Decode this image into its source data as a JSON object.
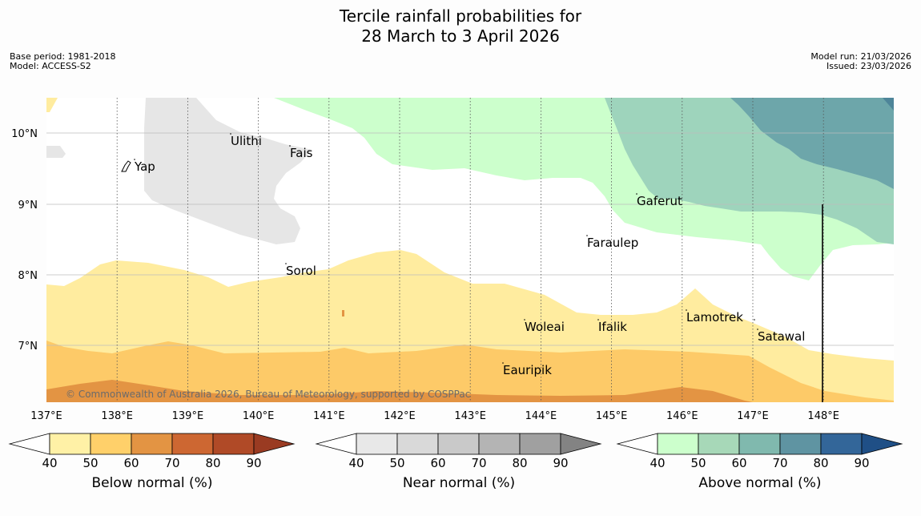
{
  "title": {
    "line1": "Tercile rainfall probabilities for",
    "line2": "28 March to 3 April 2026"
  },
  "meta": {
    "base_period": "Base period: 1981-2018",
    "model": "Model: ACCESS-S2",
    "model_run": "Model run: 21/03/2026",
    "issued": "Issued: 23/03/2026"
  },
  "map": {
    "lat_labels": [
      "10°N",
      "9°N",
      "8°N",
      "7°N"
    ],
    "lon_labels": [
      "137°E",
      "138°E",
      "139°E",
      "140°E",
      "141°E",
      "142°E",
      "143°E",
      "144°E",
      "145°E",
      "146°E",
      "147°E",
      "148°E"
    ],
    "places": [
      {
        "name": "Ulithi"
      },
      {
        "name": "Fais"
      },
      {
        "name": "Yap"
      },
      {
        "name": "Gaferut"
      },
      {
        "name": "Faraulep"
      },
      {
        "name": "Sorol"
      },
      {
        "name": "Lamotrek"
      },
      {
        "name": "Woleai"
      },
      {
        "name": "Ifalik"
      },
      {
        "name": "Satawal"
      },
      {
        "name": "Eauripik"
      }
    ],
    "copyright": "© Commonwealth of Australia 2026, Bureau of Meteorology, supported by COSPPac"
  },
  "colorbars": [
    {
      "label": "Below normal (%)",
      "colors": [
        "#fff1a6",
        "#ffd06a",
        "#e39443",
        "#cd6732",
        "#b04a27",
        "#9a3b22"
      ],
      "ticks": [
        "40",
        "50",
        "60",
        "70",
        "80",
        "90"
      ]
    },
    {
      "label": "Near normal (%)",
      "colors": [
        "#e8e8e8",
        "#d9d9d9",
        "#c9c9c9",
        "#b4b4b4",
        "#a0a0a0",
        "#838383"
      ],
      "ticks": [
        "40",
        "50",
        "60",
        "70",
        "80",
        "90"
      ]
    },
    {
      "label": "Above normal (%)",
      "colors": [
        "#ccffcc",
        "#a7d8b8",
        "#80b9ae",
        "#5f94a2",
        "#336699",
        "#1f4f86"
      ],
      "ticks": [
        "40",
        "50",
        "60",
        "70",
        "80",
        "90"
      ]
    }
  ]
}
